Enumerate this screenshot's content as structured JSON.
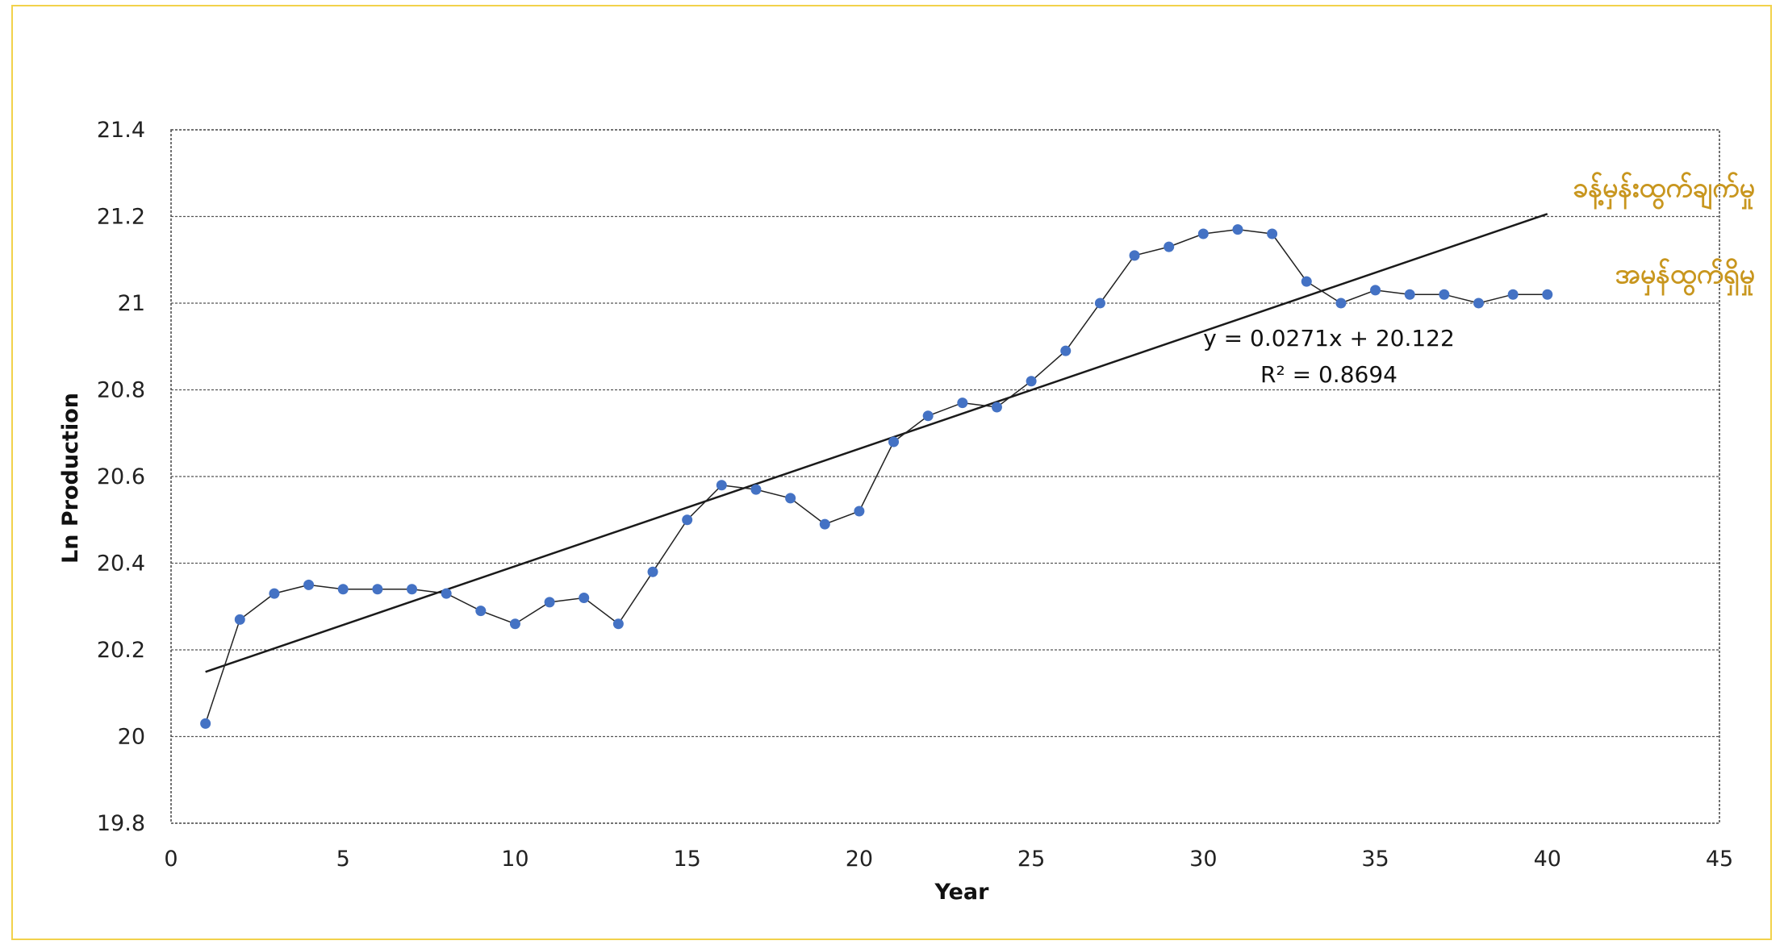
{
  "chart_data": {
    "type": "scatter",
    "xlabel": "Year",
    "ylabel": "Ln Production",
    "xlim": [
      0,
      45
    ],
    "ylim": [
      19.8,
      21.4
    ],
    "x_ticks": [
      "0",
      "5",
      "10",
      "15",
      "20",
      "25",
      "30",
      "35",
      "40",
      "45"
    ],
    "y_ticks": [
      "19.8",
      "20",
      "20.2",
      "20.4",
      "20.6",
      "20.8",
      "21",
      "21.2",
      "21.4"
    ],
    "grid": "horizontal dashed",
    "series": [
      {
        "name": "အမှန်ထွက်ရှိမှု",
        "color": "#4472c4",
        "x": [
          1,
          2,
          3,
          4,
          5,
          6,
          7,
          8,
          9,
          10,
          11,
          12,
          13,
          14,
          15,
          16,
          17,
          18,
          19,
          20,
          21,
          22,
          23,
          24,
          25,
          26,
          27,
          28,
          29,
          30,
          31,
          32,
          33,
          34,
          35,
          36,
          37,
          38,
          39,
          40
        ],
        "y": [
          20.03,
          20.27,
          20.33,
          20.35,
          20.34,
          20.34,
          20.34,
          20.33,
          20.29,
          20.26,
          20.31,
          20.32,
          20.26,
          20.38,
          20.5,
          20.58,
          20.57,
          20.55,
          20.49,
          20.52,
          20.68,
          20.74,
          20.77,
          20.76,
          20.82,
          20.89,
          21.0,
          21.11,
          21.13,
          21.16,
          21.17,
          21.16,
          21.05,
          21.0,
          21.03,
          21.02,
          21.02,
          21.0,
          21.02,
          21.02
        ]
      }
    ],
    "trendline": {
      "name": "ခန့်မှန်းထွက်ချက်မှု",
      "color": "#1a1a1a",
      "slope": 0.0271,
      "intercept": 20.122,
      "x_range": [
        1,
        40
      ],
      "equation": "y = 0.0271x + 20.122",
      "r2": "R² = 0.8694"
    },
    "label_color": "#c8961e"
  }
}
